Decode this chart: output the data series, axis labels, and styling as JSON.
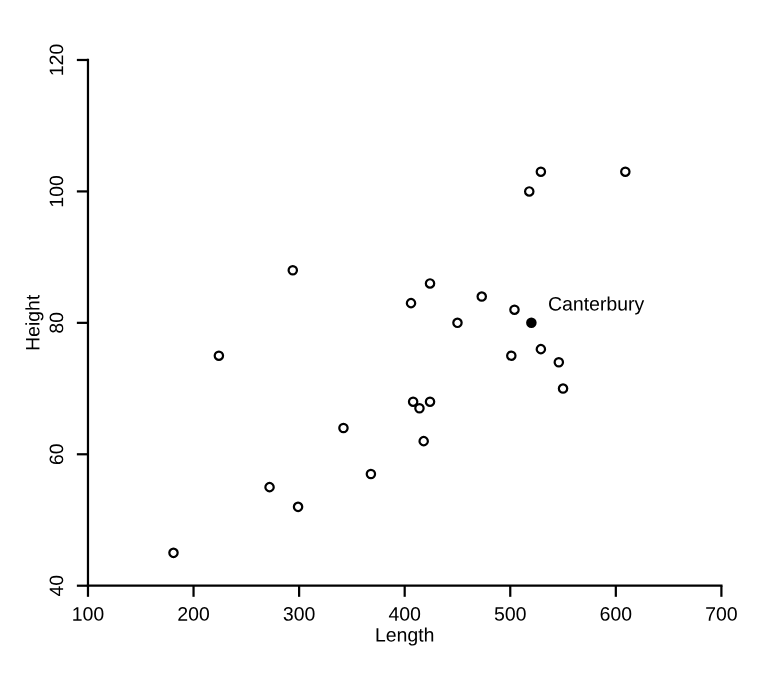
{
  "chart_data": {
    "type": "scatter",
    "xlabel": "Length",
    "ylabel": "Height",
    "xlim": [
      100,
      700
    ],
    "ylim": [
      40,
      120
    ],
    "xticks": [
      100,
      200,
      300,
      400,
      500,
      600,
      700
    ],
    "yticks": [
      40,
      60,
      80,
      100,
      120
    ],
    "grid": false,
    "legend": false,
    "marker": "circle",
    "series": [
      {
        "color": "#000000",
        "x": [
          181,
          272,
          299,
          342,
          368,
          408,
          414,
          424,
          418,
          550,
          224,
          294,
          406,
          424,
          450,
          473,
          504,
          501,
          529,
          546,
          518,
          529,
          609
        ],
        "values": [
          45,
          55,
          52,
          64,
          57,
          68,
          67,
          68,
          62,
          70,
          75,
          88,
          83,
          86,
          80,
          84,
          82,
          75,
          76,
          74,
          100,
          103,
          103
        ]
      },
      {
        "name": "Canterbury",
        "color": "#000000",
        "x": [
          520
        ],
        "values": [
          80
        ]
      }
    ]
  }
}
